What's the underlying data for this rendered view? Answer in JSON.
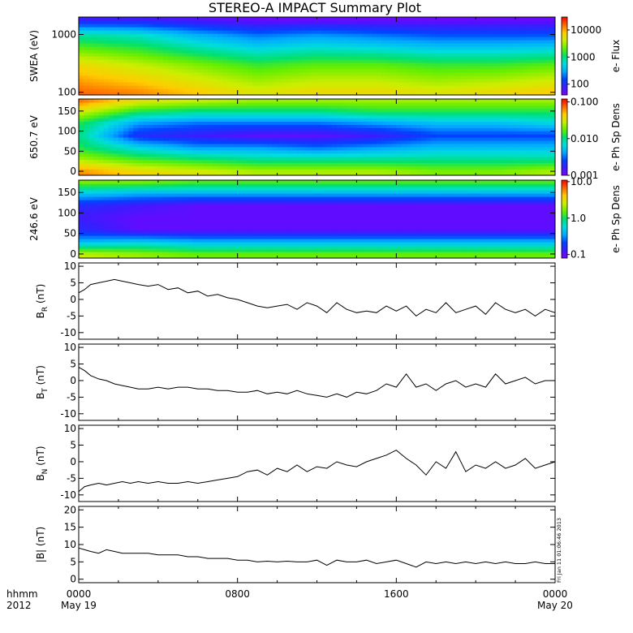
{
  "title": "STEREO-A IMPACT Summary Plot",
  "colors": {
    "background": "#ffffff",
    "axis": "#000000",
    "trace": "#000000",
    "colorscale": [
      "#7f00ff",
      "#3a1dff",
      "#0044ff",
      "#00aaff",
      "#00dddd",
      "#00e070",
      "#66ee00",
      "#ccee00",
      "#ffcc00",
      "#ff6600",
      "#ff0000"
    ]
  },
  "x_axis": {
    "label_top": "hhmm",
    "label_bottom": "2012",
    "ticks": [
      {
        "hhmm": "0000",
        "date": "May 19"
      },
      {
        "hhmm": "0800",
        "date": ""
      },
      {
        "hhmm": "1600",
        "date": ""
      },
      {
        "hhmm": "0000",
        "date": "May 20"
      }
    ]
  },
  "timestamp_note": "Fri Jan 11 01:06:46 2013",
  "chart_data": [
    {
      "type": "heatmap",
      "name": "swea_spectrogram",
      "ylabel": "SWEA (eV)",
      "yscale": "log",
      "ylim": [
        90,
        2000
      ],
      "yticks": [
        "1000",
        "100"
      ],
      "colorbar": {
        "label": "e- Flux",
        "scale": "log",
        "ticks": [
          "10000",
          "1000",
          "100"
        ],
        "range": [
          40,
          30000
        ]
      },
      "x_hours": [
        0,
        3,
        6,
        9,
        12,
        15,
        18,
        21,
        24
      ],
      "y_energy_eV": [
        100,
        300,
        1000,
        1800
      ],
      "log_flux": [
        [
          4.2,
          4.1,
          3.9,
          3.7,
          3.8,
          3.8,
          3.7,
          3.8,
          3.9
        ],
        [
          3.8,
          3.6,
          3.4,
          3.2,
          3.3,
          3.3,
          3.2,
          3.2,
          3.3
        ],
        [
          2.9,
          2.8,
          2.5,
          2.3,
          2.4,
          2.3,
          2.2,
          2.2,
          2.2
        ],
        [
          1.9,
          1.9,
          1.8,
          1.7,
          1.7,
          1.7,
          1.7,
          1.7,
          1.7
        ]
      ]
    },
    {
      "type": "heatmap",
      "name": "pad_650eV",
      "ylabel": "650.7 eV",
      "ylim": [
        -10,
        180
      ],
      "yticks": [
        "150",
        "100",
        "50",
        "0"
      ],
      "colorbar": {
        "label": "e- Ph Sp Dens",
        "scale": "log",
        "ticks": [
          "0.100",
          "0.010",
          "0.001"
        ],
        "range": [
          0.001,
          0.12
        ]
      },
      "x_hours": [
        0,
        3,
        6,
        9,
        12,
        15,
        18,
        21,
        24
      ],
      "y_pitch_angle_deg": [
        0,
        30,
        60,
        90,
        120,
        150,
        180
      ],
      "log_dens": [
        [
          -1.2,
          -1.4,
          -1.5,
          -1.6,
          -1.6,
          -1.6,
          -1.7,
          -1.7,
          -1.6
        ],
        [
          -1.6,
          -1.8,
          -1.9,
          -2.0,
          -2.0,
          -2.0,
          -2.0,
          -2.0,
          -2.0
        ],
        [
          -1.9,
          -2.2,
          -2.4,
          -2.4,
          -2.5,
          -2.4,
          -2.3,
          -2.3,
          -2.3
        ],
        [
          -2.0,
          -2.7,
          -2.8,
          -2.9,
          -2.9,
          -2.8,
          -2.6,
          -2.6,
          -2.6
        ],
        [
          -1.9,
          -2.4,
          -2.5,
          -2.5,
          -2.5,
          -2.4,
          -2.3,
          -2.3,
          -2.2
        ],
        [
          -1.5,
          -1.9,
          -2.0,
          -2.0,
          -2.0,
          -1.9,
          -1.9,
          -1.9,
          -1.9
        ],
        [
          -1.1,
          -1.4,
          -1.5,
          -1.6,
          -1.6,
          -1.6,
          -1.6,
          -1.6,
          -1.6
        ]
      ]
    },
    {
      "type": "heatmap",
      "name": "pad_246eV",
      "ylabel": "246.6 eV",
      "ylim": [
        -10,
        180
      ],
      "yticks": [
        "150",
        "100",
        "50",
        "0"
      ],
      "colorbar": {
        "label": "e- Ph Sp Dens",
        "scale": "log",
        "ticks": [
          "10.0",
          "1.0",
          "0.1"
        ],
        "range": [
          0.08,
          11
        ]
      },
      "x_hours": [
        0,
        3,
        6,
        9,
        12,
        15,
        18,
        21,
        24
      ],
      "y_pitch_angle_deg": [
        0,
        30,
        60,
        90,
        120,
        150,
        180
      ],
      "log_dens": [
        [
          0.4,
          0.3,
          0.2,
          0.2,
          0.2,
          0.2,
          0.2,
          0.2,
          0.2
        ],
        [
          -0.4,
          -0.3,
          -0.4,
          -0.4,
          -0.4,
          -0.4,
          -0.4,
          -0.4,
          -0.4
        ],
        [
          -0.8,
          -1.0,
          -1.0,
          -1.0,
          -1.0,
          -1.0,
          -1.0,
          -1.0,
          -1.0
        ],
        [
          -0.9,
          -1.0,
          -1.0,
          -1.0,
          -1.0,
          -1.0,
          -1.0,
          -1.0,
          -1.0
        ],
        [
          -0.8,
          -0.9,
          -1.0,
          -1.0,
          -1.0,
          -1.0,
          -1.0,
          -1.0,
          -1.0
        ],
        [
          -0.3,
          -0.4,
          -0.4,
          -0.4,
          -0.4,
          -0.4,
          -0.4,
          -0.4,
          -0.4
        ],
        [
          0.3,
          0.3,
          0.2,
          0.2,
          0.2,
          0.2,
          0.2,
          0.2,
          0.2
        ]
      ]
    },
    {
      "type": "line",
      "name": "BR",
      "ylabel_main": "B",
      "ylabel_sub": "R",
      "ylabel_unit": " (nT)",
      "ylim": [
        -12,
        11
      ],
      "yticks": [
        10,
        5,
        0,
        -5,
        -10
      ],
      "x_hours": [
        0,
        0.3,
        0.6,
        1,
        1.4,
        1.8,
        2.2,
        2.6,
        3,
        3.5,
        4,
        4.5,
        5,
        5.5,
        6,
        6.5,
        7,
        7.5,
        8,
        8.5,
        9,
        9.5,
        10,
        10.5,
        11,
        11.5,
        12,
        12.5,
        13,
        13.5,
        14,
        14.5,
        15,
        15.5,
        16,
        16.5,
        17,
        17.5,
        18,
        18.5,
        19,
        19.5,
        20,
        20.5,
        21,
        21.5,
        22,
        22.5,
        23,
        23.5,
        24
      ],
      "y": [
        2,
        3,
        4.5,
        5,
        5.5,
        6,
        5.5,
        5,
        4.5,
        4,
        4.5,
        3,
        3.5,
        2,
        2.5,
        1,
        1.5,
        0.5,
        0,
        -1,
        -2,
        -2.5,
        -2,
        -1.5,
        -3,
        -1,
        -2,
        -4,
        -1,
        -3,
        -4,
        -3.5,
        -4,
        -2,
        -3.5,
        -2,
        -5,
        -3,
        -4,
        -1,
        -4,
        -3,
        -2,
        -4.5,
        -1,
        -3,
        -4,
        -3,
        -5,
        -3,
        -4
      ]
    },
    {
      "type": "line",
      "name": "BT",
      "ylabel_main": "B",
      "ylabel_sub": "T",
      "ylabel_unit": " (nT)",
      "ylim": [
        -12,
        11
      ],
      "yticks": [
        10,
        5,
        0,
        -5,
        -10
      ],
      "x_hours": [
        0,
        0.3,
        0.6,
        1,
        1.4,
        1.8,
        2.2,
        2.6,
        3,
        3.5,
        4,
        4.5,
        5,
        5.5,
        6,
        6.5,
        7,
        7.5,
        8,
        8.5,
        9,
        9.5,
        10,
        10.5,
        11,
        11.5,
        12,
        12.5,
        13,
        13.5,
        14,
        14.5,
        15,
        15.5,
        16,
        16.5,
        17,
        17.5,
        18,
        18.5,
        19,
        19.5,
        20,
        20.5,
        21,
        21.5,
        22,
        22.5,
        23,
        23.5,
        24
      ],
      "y": [
        4,
        3,
        1.5,
        0.5,
        0,
        -1,
        -1.5,
        -2,
        -2.5,
        -2.5,
        -2,
        -2.5,
        -2,
        -2,
        -2.5,
        -2.5,
        -3,
        -3,
        -3.5,
        -3.5,
        -3,
        -4,
        -3.5,
        -4,
        -3,
        -4,
        -4.5,
        -5,
        -4,
        -5,
        -3.5,
        -4,
        -3,
        -1,
        -2,
        2,
        -2,
        -1,
        -3,
        -1,
        0,
        -2,
        -1,
        -2,
        2,
        -1,
        0,
        1,
        -1,
        0,
        0
      ]
    },
    {
      "type": "line",
      "name": "BN",
      "ylabel_main": "B",
      "ylabel_sub": "N",
      "ylabel_unit": " (nT)",
      "ylim": [
        -12,
        11
      ],
      "yticks": [
        10,
        5,
        0,
        -5,
        -10
      ],
      "x_hours": [
        0,
        0.3,
        0.6,
        1,
        1.4,
        1.8,
        2.2,
        2.6,
        3,
        3.5,
        4,
        4.5,
        5,
        5.5,
        6,
        6.5,
        7,
        7.5,
        8,
        8.5,
        9,
        9.5,
        10,
        10.5,
        11,
        11.5,
        12,
        12.5,
        13,
        13.5,
        14,
        14.5,
        15,
        15.5,
        16,
        16.5,
        17,
        17.5,
        18,
        18.5,
        19,
        19.5,
        20,
        20.5,
        21,
        21.5,
        22,
        22.5,
        23,
        23.5,
        24
      ],
      "y": [
        -9,
        -7.5,
        -7,
        -6.5,
        -7,
        -6.5,
        -6,
        -6.5,
        -6,
        -6.5,
        -6,
        -6.5,
        -6.5,
        -6,
        -6.5,
        -6,
        -5.5,
        -5,
        -4.5,
        -3,
        -2.5,
        -4,
        -2,
        -3,
        -1,
        -3,
        -1.5,
        -2,
        0,
        -1,
        -1.5,
        0,
        1,
        2,
        3.5,
        1,
        -1,
        -4,
        0,
        -2,
        3,
        -3,
        -1,
        -2,
        0,
        -2,
        -1,
        1,
        -2,
        -1,
        0
      ]
    },
    {
      "type": "line",
      "name": "Bmag",
      "ylabel_main": "|B| (nT)",
      "ylim": [
        -1,
        21
      ],
      "yticks": [
        20,
        15,
        10,
        5,
        0
      ],
      "x_hours": [
        0,
        0.3,
        0.6,
        1,
        1.4,
        1.8,
        2.2,
        2.6,
        3,
        3.5,
        4,
        4.5,
        5,
        5.5,
        6,
        6.5,
        7,
        7.5,
        8,
        8.5,
        9,
        9.5,
        10,
        10.5,
        11,
        11.5,
        12,
        12.5,
        13,
        13.5,
        14,
        14.5,
        15,
        15.5,
        16,
        16.5,
        17,
        17.5,
        18,
        18.5,
        19,
        19.5,
        20,
        20.5,
        21,
        21.5,
        22,
        22.5,
        23,
        23.5,
        24
      ],
      "y": [
        9,
        8.5,
        8,
        7.5,
        8.5,
        8,
        7.5,
        7.5,
        7.5,
        7.5,
        7,
        7,
        7,
        6.5,
        6.5,
        6,
        6,
        6,
        5.5,
        5.5,
        5,
        5.2,
        5,
        5.2,
        5,
        5,
        5.5,
        4,
        5.5,
        5,
        5,
        5.5,
        4.5,
        5,
        5.5,
        4.5,
        3.5,
        5,
        4.5,
        5,
        4.5,
        5,
        4.5,
        5,
        4.5,
        5,
        4.5,
        4.5,
        5,
        4.5,
        4.5
      ]
    }
  ]
}
